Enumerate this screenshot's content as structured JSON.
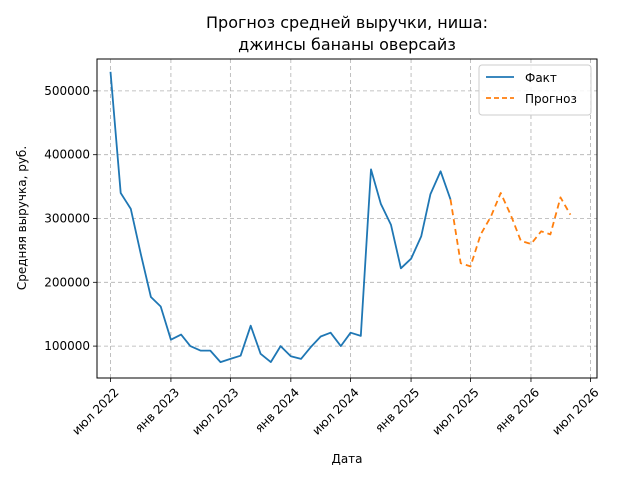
{
  "chart_data": {
    "type": "line",
    "title": "Прогноз средней выручки, ниша:",
    "subtitle": "джинсы бананы оверсайз",
    "xlabel": "Дата",
    "ylabel": "Средняя выручка, руб.",
    "grid": true,
    "legend_position": "top-right",
    "x_tick_labels": [
      "июл 2022",
      "янв 2023",
      "июл 2023",
      "янв 2024",
      "июл 2024",
      "янв 2025",
      "июл 2025",
      "янв 2026",
      "июл 2026"
    ],
    "y_ticks": [
      100000,
      200000,
      300000,
      400000,
      500000
    ],
    "y_tick_labels": [
      "100000",
      "200000",
      "300000",
      "400000",
      "500000"
    ],
    "ylim": [
      50000,
      550000
    ],
    "xlim": [
      "2022-05-21",
      "2026-07-21"
    ],
    "colors": {
      "fact": "#1f77b4",
      "forecast": "#ff7f0e"
    },
    "series": [
      {
        "name": "Факт",
        "style": "solid",
        "x": [
          "2022-07-01",
          "2022-08-01",
          "2022-09-01",
          "2022-10-01",
          "2022-11-01",
          "2022-12-01",
          "2023-01-01",
          "2023-02-01",
          "2023-03-01",
          "2023-04-01",
          "2023-05-01",
          "2023-06-01",
          "2023-07-01",
          "2023-08-01",
          "2023-09-01",
          "2023-10-01",
          "2023-11-01",
          "2023-12-01",
          "2024-01-01",
          "2024-02-01",
          "2024-03-01",
          "2024-04-01",
          "2024-05-01",
          "2024-06-01",
          "2024-07-01",
          "2024-08-01",
          "2024-09-01",
          "2024-10-01",
          "2024-11-01",
          "2024-12-01",
          "2025-01-01",
          "2025-02-01",
          "2025-03-01",
          "2025-04-01",
          "2025-05-01"
        ],
        "values": [
          530000,
          340000,
          315000,
          245000,
          177000,
          162000,
          110000,
          118000,
          100000,
          93000,
          93000,
          75000,
          80000,
          85000,
          132000,
          88000,
          75000,
          100000,
          84000,
          80000,
          98000,
          115000,
          121000,
          100000,
          121000,
          116000,
          377000,
          323000,
          290000,
          222000,
          237000,
          272000,
          338000,
          374000,
          330000
        ]
      },
      {
        "name": "Прогноз",
        "style": "dashed",
        "x": [
          "2025-05-01",
          "2025-06-01",
          "2025-07-01",
          "2025-08-01",
          "2025-09-01",
          "2025-10-01",
          "2025-11-01",
          "2025-12-01",
          "2026-01-01",
          "2026-02-01",
          "2026-03-01",
          "2026-04-01",
          "2026-05-01"
        ],
        "values": [
          330000,
          230000,
          225000,
          275000,
          303000,
          340000,
          305000,
          265000,
          260000,
          280000,
          275000,
          333000,
          306000
        ]
      }
    ]
  }
}
